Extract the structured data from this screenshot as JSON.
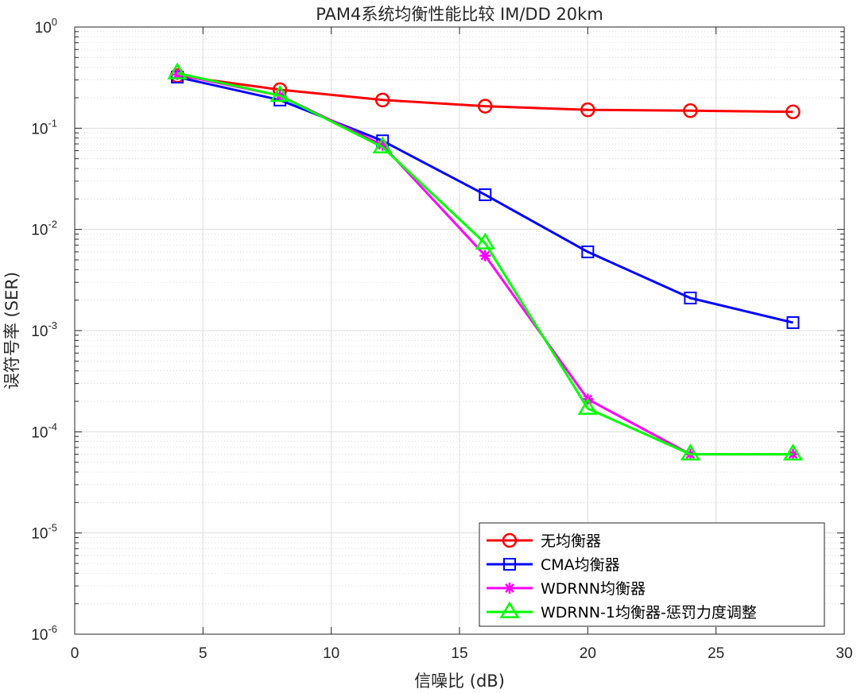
{
  "chart_data": {
    "type": "line",
    "title": "PAM4系统均衡性能比较 IM/DD 20km",
    "xlabel": "信噪比 (dB)",
    "ylabel": "误符号率 (SER)",
    "xlim": [
      0,
      30
    ],
    "ylim": [
      1e-06,
      1
    ],
    "yscale": "log",
    "grid": true,
    "legend_position": "bottom-right",
    "x_ticks": [
      "0",
      "5",
      "10",
      "15",
      "20",
      "25",
      "30"
    ],
    "y_ticks": [
      {
        "base": "10",
        "exp": "0"
      },
      {
        "base": "10",
        "exp": "-1"
      },
      {
        "base": "10",
        "exp": "-2"
      },
      {
        "base": "10",
        "exp": "-3"
      },
      {
        "base": "10",
        "exp": "-4"
      },
      {
        "base": "10",
        "exp": "-5"
      },
      {
        "base": "10",
        "exp": "-6"
      }
    ],
    "x": [
      4,
      8,
      12,
      16,
      20,
      24,
      28
    ],
    "series": [
      {
        "name": "无均衡器",
        "color": "#ff0000",
        "marker": "circle",
        "values": [
          0.33,
          0.24,
          0.19,
          0.165,
          0.152,
          0.149,
          0.145
        ]
      },
      {
        "name": "CMA均衡器",
        "color": "#0000ff",
        "marker": "square",
        "values": [
          0.32,
          0.19,
          0.075,
          0.022,
          0.006,
          0.0021,
          0.0012
        ]
      },
      {
        "name": "WDRNN均衡器",
        "color": "#ff00ff",
        "marker": "asterisk",
        "values": [
          0.34,
          0.21,
          0.068,
          0.0055,
          0.00021,
          6e-05,
          6e-05
        ]
      },
      {
        "name": "WDRNN-1均衡器-惩罚力度调整",
        "color": "#00ff00",
        "marker": "triangle",
        "values": [
          0.35,
          0.21,
          0.065,
          0.0073,
          0.00017,
          6e-05,
          6e-05
        ]
      }
    ]
  }
}
